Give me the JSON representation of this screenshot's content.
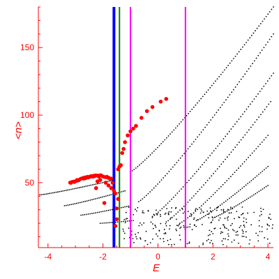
{
  "chart_data": {
    "type": "scatter",
    "title": "",
    "xlabel": "E",
    "ylabel": "<n>",
    "xlim": [
      -4.35,
      4.2
    ],
    "ylim": [
      2,
      180
    ],
    "xticks": [
      -4,
      -2,
      0,
      2,
      4
    ],
    "yticks": [
      50,
      100,
      150
    ],
    "grid": false,
    "legend": "none",
    "colors": {
      "axis": "#ff0000",
      "ticks": "#ff0000",
      "black_points": "#000000",
      "red_points": "#ff0000",
      "line_blue": "#0000ff",
      "line_green": "#008000",
      "line_magenta": "#ff00ff"
    },
    "vertical_lines": [
      {
        "x": -1.6,
        "color": "#0000ff",
        "width": "thick"
      },
      {
        "x": -1.4,
        "color": "#008000",
        "width": "medium"
      },
      {
        "x": -1.0,
        "color": "#ff00ff",
        "width": "medium"
      },
      {
        "x": 1.0,
        "color": "#ff00ff",
        "width": "medium"
      }
    ],
    "black_curves": [
      {
        "from": [
          -4.3,
          41
        ],
        "to": [
          -1.6,
          52
        ],
        "n": 46
      },
      {
        "from": [
          -3.4,
          33
        ],
        "to": [
          -1.2,
          44
        ],
        "n": 36
      },
      {
        "from": [
          -2.8,
          26
        ],
        "to": [
          -1.0,
          33
        ],
        "n": 28
      },
      {
        "from": [
          -2.1,
          20
        ],
        "to": [
          -0.9,
          22
        ],
        "n": 18
      },
      {
        "from": [
          -1.0,
          58
        ],
        "to": [
          4.2,
          180
        ],
        "n": 80
      },
      {
        "from": [
          -0.7,
          36
        ],
        "to": [
          4.2,
          160
        ],
        "n": 72
      },
      {
        "from": [
          -0.2,
          25
        ],
        "to": [
          4.2,
          131
        ],
        "n": 64
      },
      {
        "from": [
          0.3,
          21
        ],
        "to": [
          4.1,
          110
        ],
        "n": 54
      },
      {
        "from": [
          0.8,
          20
        ],
        "to": [
          4.0,
          85
        ],
        "n": 46
      },
      {
        "from": [
          1.4,
          22
        ],
        "to": [
          4.0,
          62
        ],
        "n": 40
      },
      {
        "from": [
          2.0,
          24
        ],
        "to": [
          4.0,
          48
        ],
        "n": 32
      }
    ],
    "black_scatter_cloud": {
      "x_range": [
        -1.3,
        4.2
      ],
      "y_range": [
        4,
        32
      ],
      "n": 260
    },
    "red_arc": {
      "points": [
        [
          -3.2,
          50
        ],
        [
          -2.9,
          52
        ],
        [
          -2.6,
          54
        ],
        [
          -2.3,
          55
        ],
        [
          -2.0,
          55
        ],
        [
          -1.7,
          53
        ]
      ],
      "n": 48
    },
    "red_points": [
      [
        -2.2,
        51
      ],
      [
        -2.1,
        52
      ],
      [
        -1.9,
        50
      ],
      [
        -1.8,
        48
      ],
      [
        -1.7,
        46
      ],
      [
        -1.6,
        44
      ],
      [
        -1.55,
        42
      ],
      [
        -1.45,
        60
      ],
      [
        -1.4,
        62
      ],
      [
        -1.35,
        63
      ],
      [
        -1.3,
        72
      ],
      [
        -1.25,
        75
      ],
      [
        -1.2,
        80
      ],
      [
        -1.1,
        85
      ],
      [
        -1.0,
        88
      ],
      [
        -0.9,
        90
      ],
      [
        -0.8,
        92
      ],
      [
        -0.6,
        98
      ],
      [
        -0.4,
        103
      ],
      [
        -0.2,
        106
      ],
      [
        0.1,
        110
      ],
      [
        0.3,
        112
      ],
      [
        -1.45,
        38
      ],
      [
        -1.5,
        31
      ],
      [
        -1.5,
        23
      ],
      [
        -1.55,
        18
      ],
      [
        -1.95,
        35
      ],
      [
        -2.25,
        46
      ],
      [
        -1.65,
        50
      ]
    ]
  }
}
